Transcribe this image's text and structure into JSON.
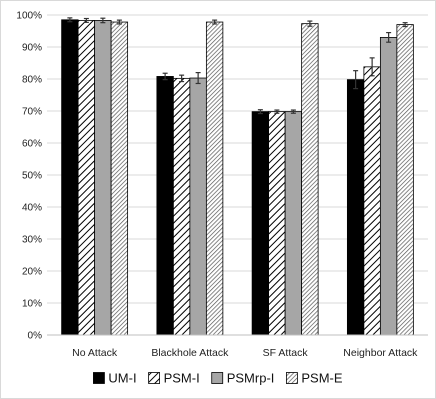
{
  "chart_data": {
    "type": "bar",
    "categories": [
      "No Attack",
      "Blackhole Attack",
      "SF Attack",
      "Neighbor Attack"
    ],
    "ylim": [
      0,
      100
    ],
    "ytick_step": 10,
    "ytick_suffix": "%",
    "grid": true,
    "legend_position": "bottom",
    "series": [
      {
        "name": "UM-I",
        "values": [
          98.5,
          80.8,
          69.8,
          79.8
        ],
        "errors": [
          0.6,
          1.0,
          0.6,
          2.8
        ],
        "fill": "#000000",
        "pattern": "solid"
      },
      {
        "name": "PSM-I",
        "values": [
          98.3,
          80.2,
          69.8,
          83.8
        ],
        "errors": [
          0.6,
          1.0,
          0.5,
          2.8
        ],
        "fill": "#ffffff",
        "pattern": "diagonal-lines"
      },
      {
        "name": "PSMrp-I",
        "values": [
          98.3,
          80.3,
          69.8,
          93.0
        ],
        "errors": [
          0.7,
          1.7,
          0.5,
          1.5
        ],
        "fill": "#a6a6a6",
        "pattern": "solid"
      },
      {
        "name": "PSM-E",
        "values": [
          97.8,
          97.8,
          97.3,
          97.0
        ],
        "errors": [
          0.6,
          0.6,
          0.8,
          0.6
        ],
        "fill": "#e6e6e6",
        "pattern": "dense-diagonal-lines"
      }
    ]
  }
}
